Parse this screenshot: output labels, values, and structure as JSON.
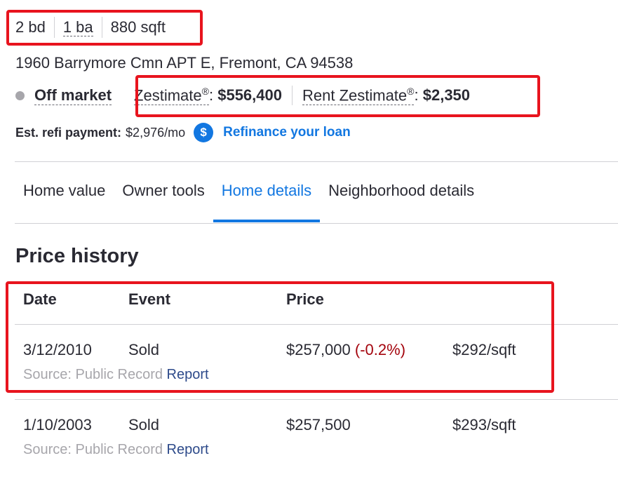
{
  "facts": {
    "beds": "2 bd",
    "baths": "1 ba",
    "sqft": "880 sqft"
  },
  "address": "1960 Barrymore Cmn APT E, Fremont, CA 94538",
  "status": {
    "label": "Off market"
  },
  "zestimate": {
    "label": "Zestimate",
    "reg": "®",
    "colon": ":",
    "value": "$556,400"
  },
  "rent_zestimate": {
    "label": "Rent Zestimate",
    "reg": "®",
    "colon": ":",
    "value": "$2,350"
  },
  "refi": {
    "label": "Est. refi payment:",
    "value": "$2,976/mo",
    "icon_glyph": "$",
    "link": "Refinance your loan"
  },
  "tabs": [
    {
      "label": "Home value",
      "active": false
    },
    {
      "label": "Owner tools",
      "active": false
    },
    {
      "label": "Home details",
      "active": true
    },
    {
      "label": "Neighborhood details",
      "active": false
    }
  ],
  "price_history": {
    "title": "Price history",
    "headers": [
      "Date",
      "Event",
      "Price"
    ],
    "rows": [
      {
        "date": "3/12/2010",
        "event": "Sold",
        "price": "$257,000",
        "change": "(-0.2%)",
        "per_sqft": "$292/sqft",
        "source": "Source: Public Record",
        "report": "Report"
      },
      {
        "date": "1/10/2003",
        "event": "Sold",
        "price": "$257,500",
        "change": "",
        "per_sqft": "$293/sqft",
        "source": "Source: Public Record",
        "report": "Report"
      }
    ]
  },
  "colors": {
    "accent": "#1277e1",
    "highlight": "#e8141e",
    "negative_change": "#a4050e",
    "muted": "#a7a6ab"
  }
}
